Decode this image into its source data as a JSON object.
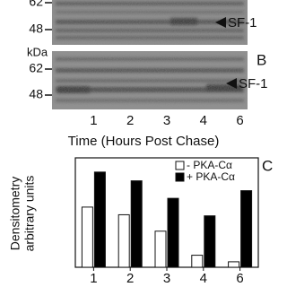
{
  "gel_a": {
    "markers": [
      "62",
      "48"
    ],
    "band_label": "SF-1"
  },
  "kda_label": "kDa",
  "gel_b": {
    "panel_label": "B",
    "markers": [
      "62",
      "48"
    ],
    "band_label": "SF-1"
  },
  "lanes": [
    "1",
    "2",
    "3",
    "4",
    "6"
  ],
  "x_label": "Time (Hours Post Chase)",
  "chart_data": {
    "type": "bar",
    "panel_label": "C",
    "ylabel": [
      "Densitometry",
      "arbitrary units"
    ],
    "categories": [
      "1",
      "2",
      "3",
      "4",
      "6"
    ],
    "series": [
      {
        "name": "- PKA-Cα",
        "color": "#ffffff",
        "values": [
          55,
          48,
          33,
          11,
          5
        ]
      },
      {
        "name": "+ PKA-Cα",
        "color": "#000000",
        "values": [
          87,
          79,
          63,
          47,
          70
        ]
      }
    ],
    "ylim": [
      0,
      100
    ]
  }
}
